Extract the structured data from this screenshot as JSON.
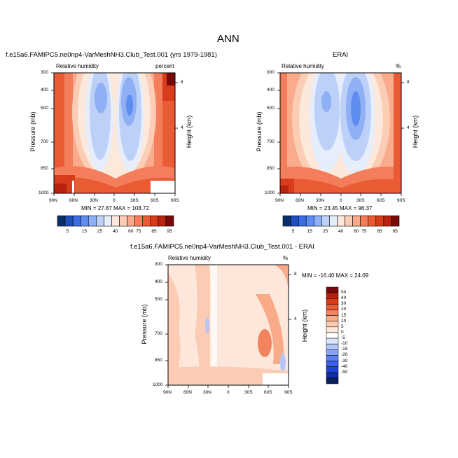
{
  "figure": {
    "title": "ANN"
  },
  "colors": {
    "cmap_main": [
      "#08306b",
      "#1f4fbf",
      "#3a6ee0",
      "#5f8cf0",
      "#8fb0f5",
      "#bcd0f8",
      "#e6edfb",
      "#fde8dc",
      "#fbcdb5",
      "#f9ab8c",
      "#f47e5c",
      "#ea5a33",
      "#d93c1a",
      "#b8230f",
      "#7a0a0a"
    ],
    "cmap_diff": [
      "#08215e",
      "#0d2ea8",
      "#1f44d6",
      "#3a61e8",
      "#5b80ef",
      "#86a3f4",
      "#b4c6f8",
      "#dbe6fb",
      "#ffffff",
      "#fde7da",
      "#fbcbb3",
      "#f8aa89",
      "#f3825e",
      "#ea5a33",
      "#d83a17",
      "#b5230c",
      "#7a0a0a"
    ]
  },
  "chart_data": [
    {
      "type": "heatmap",
      "title": "f.e15a6.FAMIPC5.ne0np4-VarMeshNH3.Club_Test.001 (yrs 1979-1981)",
      "left_label": "Relative humidity",
      "right_label": "percent",
      "ylabel": "Pressure (mb)",
      "y2label": "Height (km)",
      "x_ticks": [
        "90N",
        "60N",
        "30N",
        "0",
        "30S",
        "60S",
        "90S"
      ],
      "y_ticks": [
        "300",
        "400",
        "500",
        "700",
        "850",
        "1000"
      ],
      "y2_ticks": [
        "8",
        "4"
      ],
      "stats": "MIN = 27.87  MAX = 108.72",
      "min": 27.87,
      "max": 108.72,
      "colorbar_labels": [
        "5",
        "15",
        "25",
        "40",
        "60",
        "75",
        "85",
        "95"
      ]
    },
    {
      "type": "heatmap",
      "title": "ERAI",
      "left_label": "Relative humidity",
      "right_label": "%",
      "ylabel": "Pressure (mb)",
      "y2label": "Height (km)",
      "x_ticks": [
        "90N",
        "60N",
        "30N",
        "0",
        "30S",
        "60S",
        "90S"
      ],
      "y_ticks": [
        "300",
        "400",
        "500",
        "700",
        "850",
        "1000"
      ],
      "y2_ticks": [
        "8",
        "4"
      ],
      "stats": "MIN = 23.45  MAX = 96.37",
      "min": 23.45,
      "max": 96.37,
      "colorbar_labels": [
        "5",
        "15",
        "25",
        "40",
        "60",
        "75",
        "85",
        "95"
      ]
    },
    {
      "type": "heatmap",
      "title": "f.e15a6.FAMIPC5.ne0np4-VarMeshNH3.Club_Test.001 - ERAI",
      "left_label": "Relative humidity",
      "right_label": "%",
      "ylabel": "Pressure (mb)",
      "y2label": "Height (km)",
      "x_ticks": [
        "90N",
        "60N",
        "30N",
        "0",
        "30S",
        "60S",
        "90S"
      ],
      "y_ticks": [
        "300",
        "400",
        "500",
        "700",
        "850",
        "1000"
      ],
      "y2_ticks": [
        "8",
        "4"
      ],
      "stats": "MIN = -16.40  MAX = 24.09",
      "min": -16.4,
      "max": 24.09,
      "colorbar_labels": [
        "50",
        "40",
        "30",
        "20",
        "15",
        "10",
        "5",
        "0",
        "-5",
        "-10",
        "-15",
        "-20",
        "-30",
        "-40",
        "-50"
      ]
    }
  ]
}
